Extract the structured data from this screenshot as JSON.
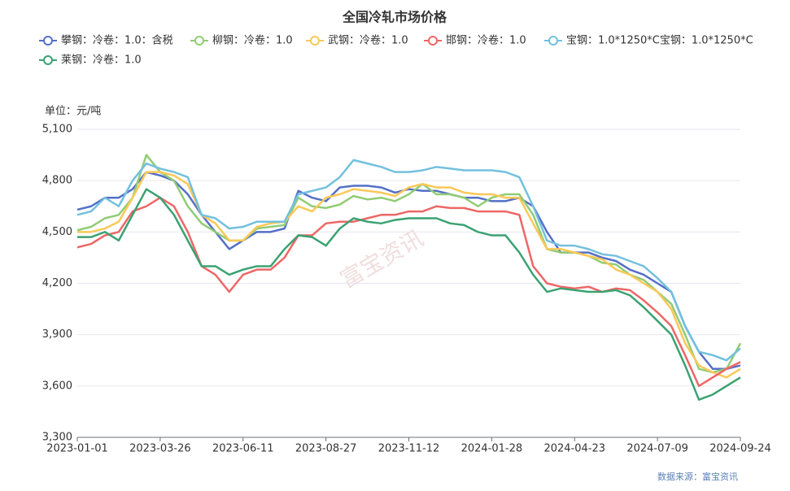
{
  "chart_data": {
    "type": "line",
    "title": "全国冷轧市场价格",
    "y_label": "单位：元/吨",
    "source": "数据来源：富宝资讯",
    "watermark": "富宝资讯",
    "categories": [
      "2023-01-01",
      null,
      null,
      null,
      null,
      null,
      "2023-03-26",
      null,
      null,
      null,
      null,
      null,
      "2023-06-11",
      null,
      null,
      null,
      null,
      null,
      "2023-08-27",
      null,
      null,
      null,
      null,
      null,
      "2023-11-12",
      null,
      null,
      null,
      null,
      null,
      "2024-01-28",
      null,
      null,
      null,
      null,
      null,
      "2024-04-23",
      null,
      null,
      null,
      null,
      null,
      "2024-07-09",
      null,
      null,
      null,
      null,
      null,
      "2024-09-24"
    ],
    "ylim": [
      3300,
      5100
    ],
    "yticks": [
      {
        "value": 3300,
        "label": "3,300"
      },
      {
        "value": 3600,
        "label": "3,600"
      },
      {
        "value": 3900,
        "label": "3,900"
      },
      {
        "value": 4200,
        "label": "4,200"
      },
      {
        "value": 4500,
        "label": "4,500"
      },
      {
        "value": 4800,
        "label": "4,800"
      },
      {
        "value": 5100,
        "label": "5,100"
      }
    ],
    "grid": true,
    "series": [
      {
        "name": "攀钢：冷卷：1.0：含税",
        "color": "#5470c6",
        "values": [
          4630,
          4650,
          4700,
          4700,
          4750,
          4850,
          4830,
          4800,
          4720,
          4600,
          4500,
          4400,
          4450,
          4500,
          4500,
          4520,
          4740,
          4700,
          4680,
          4760,
          4770,
          4770,
          4760,
          4730,
          4750,
          4740,
          4740,
          4720,
          4700,
          4700,
          4680,
          4680,
          4700,
          4650,
          4500,
          4380,
          4380,
          4380,
          4350,
          4330,
          4280,
          4250,
          4200,
          4150,
          3950,
          3800,
          3700,
          3700,
          3720
        ]
      },
      {
        "name": "柳钢：冷卷：1.0",
        "color": "#91cc75",
        "values": [
          4510,
          4530,
          4580,
          4600,
          4700,
          4950,
          4850,
          4800,
          4650,
          4550,
          4500,
          4450,
          4450,
          4520,
          4530,
          4540,
          4700,
          4650,
          4640,
          4660,
          4710,
          4690,
          4700,
          4680,
          4720,
          4780,
          4720,
          4720,
          4700,
          4650,
          4700,
          4720,
          4720,
          4600,
          4400,
          4380,
          4380,
          4360,
          4320,
          4310,
          4250,
          4220,
          4150,
          4080,
          3900,
          3700,
          3680,
          3700,
          3850
        ]
      },
      {
        "name": "武钢：冷卷：1.0",
        "color": "#fac858",
        "values": [
          4500,
          4500,
          4520,
          4560,
          4700,
          4850,
          4850,
          4830,
          4780,
          4600,
          4550,
          4450,
          4450,
          4530,
          4550,
          4560,
          4650,
          4620,
          4700,
          4720,
          4750,
          4740,
          4730,
          4710,
          4760,
          4780,
          4760,
          4760,
          4730,
          4720,
          4720,
          4700,
          4700,
          4550,
          4400,
          4400,
          4380,
          4360,
          4340,
          4280,
          4250,
          4200,
          4150,
          4050,
          3850,
          3720,
          3680,
          3650,
          3700
        ]
      },
      {
        "name": "邯钢：冷卷：1.0",
        "color": "#ee6666",
        "values": [
          4410,
          4430,
          4480,
          4500,
          4620,
          4650,
          4700,
          4650,
          4500,
          4300,
          4250,
          4150,
          4250,
          4280,
          4280,
          4350,
          4480,
          4480,
          4550,
          4560,
          4560,
          4580,
          4600,
          4600,
          4620,
          4620,
          4650,
          4640,
          4640,
          4620,
          4620,
          4620,
          4600,
          4300,
          4200,
          4180,
          4170,
          4180,
          4150,
          4170,
          4160,
          4100,
          4030,
          3950,
          3780,
          3600,
          3650,
          3700,
          3740
        ]
      },
      {
        "name": "宝钢：1.0*1250*C宝钢：1.0*1250*C",
        "color": "#73c0de",
        "values": [
          4600,
          4620,
          4700,
          4650,
          4800,
          4900,
          4870,
          4850,
          4820,
          4600,
          4580,
          4520,
          4530,
          4560,
          4560,
          4560,
          4720,
          4740,
          4760,
          4820,
          4920,
          4900,
          4880,
          4850,
          4850,
          4860,
          4880,
          4870,
          4860,
          4860,
          4860,
          4850,
          4820,
          4650,
          4450,
          4420,
          4420,
          4400,
          4370,
          4360,
          4330,
          4300,
          4230,
          4150,
          3950,
          3800,
          3780,
          3750,
          3820
        ]
      },
      {
        "name": "莱钢：冷卷：1.0",
        "color": "#3ba272",
        "values": [
          4470,
          4470,
          4500,
          4450,
          4600,
          4750,
          4700,
          4600,
          4450,
          4300,
          4300,
          4250,
          4280,
          4300,
          4300,
          4400,
          4480,
          4470,
          4420,
          4520,
          4580,
          4560,
          4550,
          4570,
          4580,
          4580,
          4580,
          4550,
          4540,
          4500,
          4480,
          4480,
          4380,
          4250,
          4150,
          4170,
          4160,
          4150,
          4150,
          4160,
          4130,
          4060,
          3980,
          3900,
          3720,
          3520,
          3550,
          3600,
          3650
        ]
      }
    ]
  }
}
